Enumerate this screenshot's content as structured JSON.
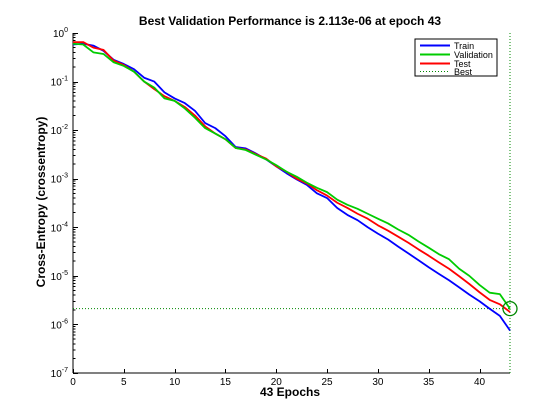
{
  "chart_data": {
    "type": "line",
    "title": "Best Validation Performance is 2.113e-06 at epoch 43",
    "xlabel": "43 Epochs",
    "ylabel": "Cross-Entropy  (crossentropy)",
    "x_scale": "linear",
    "y_scale": "log",
    "xlim": [
      0,
      43
    ],
    "ylim": [
      1e-07,
      1
    ],
    "xticks": [
      0,
      5,
      10,
      15,
      20,
      25,
      30,
      35,
      40
    ],
    "yticks": [
      1e-07,
      1e-06,
      1e-05,
      0.0001,
      0.001,
      0.01,
      0.1,
      1
    ],
    "yticks_exponents": [
      "-7",
      "-6",
      "-5",
      "-4",
      "-3",
      "-2",
      "-1",
      "0"
    ],
    "ytick_base": "10",
    "grid": false,
    "legend_position": "top-right",
    "x": [
      0,
      1,
      2,
      3,
      4,
      5,
      6,
      7,
      8,
      9,
      10,
      11,
      12,
      13,
      14,
      15,
      16,
      17,
      18,
      19,
      20,
      21,
      22,
      23,
      24,
      25,
      26,
      27,
      28,
      29,
      30,
      31,
      32,
      33,
      34,
      35,
      36,
      37,
      38,
      39,
      40,
      41,
      42,
      43
    ],
    "series": [
      {
        "name": "Train",
        "color": "#0000ff",
        "style": "solid",
        "values": [
          0.58,
          0.6,
          0.55,
          0.43,
          0.28,
          0.23,
          0.18,
          0.12,
          0.1,
          0.06,
          0.045,
          0.036,
          0.025,
          0.014,
          0.011,
          0.0075,
          0.0045,
          0.0042,
          0.0033,
          0.0025,
          0.0018,
          0.0013,
          0.00097,
          0.00075,
          0.0005,
          0.0004,
          0.00025,
          0.00018,
          0.00014,
          0.0001,
          7.4e-05,
          5.6e-05,
          4e-05,
          2.9e-05,
          2.1e-05,
          1.5e-05,
          1.1e-05,
          8.1e-06,
          5.8e-06,
          4.1e-06,
          3e-06,
          2.1e-06,
          1.5e-06,
          7.5e-07
        ]
      },
      {
        "name": "Validation",
        "color": "#00cc00",
        "style": "solid",
        "values": [
          0.6,
          0.58,
          0.4,
          0.37,
          0.25,
          0.21,
          0.16,
          0.1,
          0.075,
          0.045,
          0.04,
          0.028,
          0.018,
          0.011,
          0.0085,
          0.0065,
          0.0043,
          0.0039,
          0.0031,
          0.0025,
          0.0019,
          0.0014,
          0.0011,
          0.00083,
          0.00065,
          0.00053,
          0.00037,
          0.00029,
          0.00024,
          0.00019,
          0.00015,
          0.00012,
          9e-05,
          7e-05,
          5.1e-05,
          3.8e-05,
          2.8e-05,
          2.2e-05,
          1.4e-05,
          1e-05,
          6.5e-06,
          4.5e-06,
          4.2e-06,
          2.1e-06
        ]
      },
      {
        "name": "Test",
        "color": "#ff0000",
        "style": "solid",
        "values": [
          0.65,
          0.65,
          0.5,
          0.45,
          0.27,
          0.22,
          0.16,
          0.1,
          0.07,
          0.05,
          0.04,
          0.03,
          0.02,
          0.012,
          0.0085,
          0.0065,
          0.0043,
          0.004,
          0.0032,
          0.0026,
          0.0018,
          0.0014,
          0.001,
          0.0008,
          0.00058,
          0.00045,
          0.00032,
          0.00025,
          0.00019,
          0.00015,
          0.00011,
          8.5e-05,
          6.4e-05,
          4.8e-05,
          3.5e-05,
          2.6e-05,
          1.9e-05,
          1.4e-05,
          9.8e-06,
          6.8e-06,
          4.6e-06,
          3.2e-06,
          2.6e-06,
          1.8e-06
        ]
      }
    ],
    "best": {
      "name": "Best",
      "epoch": 43,
      "value": 2.113e-06,
      "color": "#008800",
      "style": "dotted"
    }
  }
}
